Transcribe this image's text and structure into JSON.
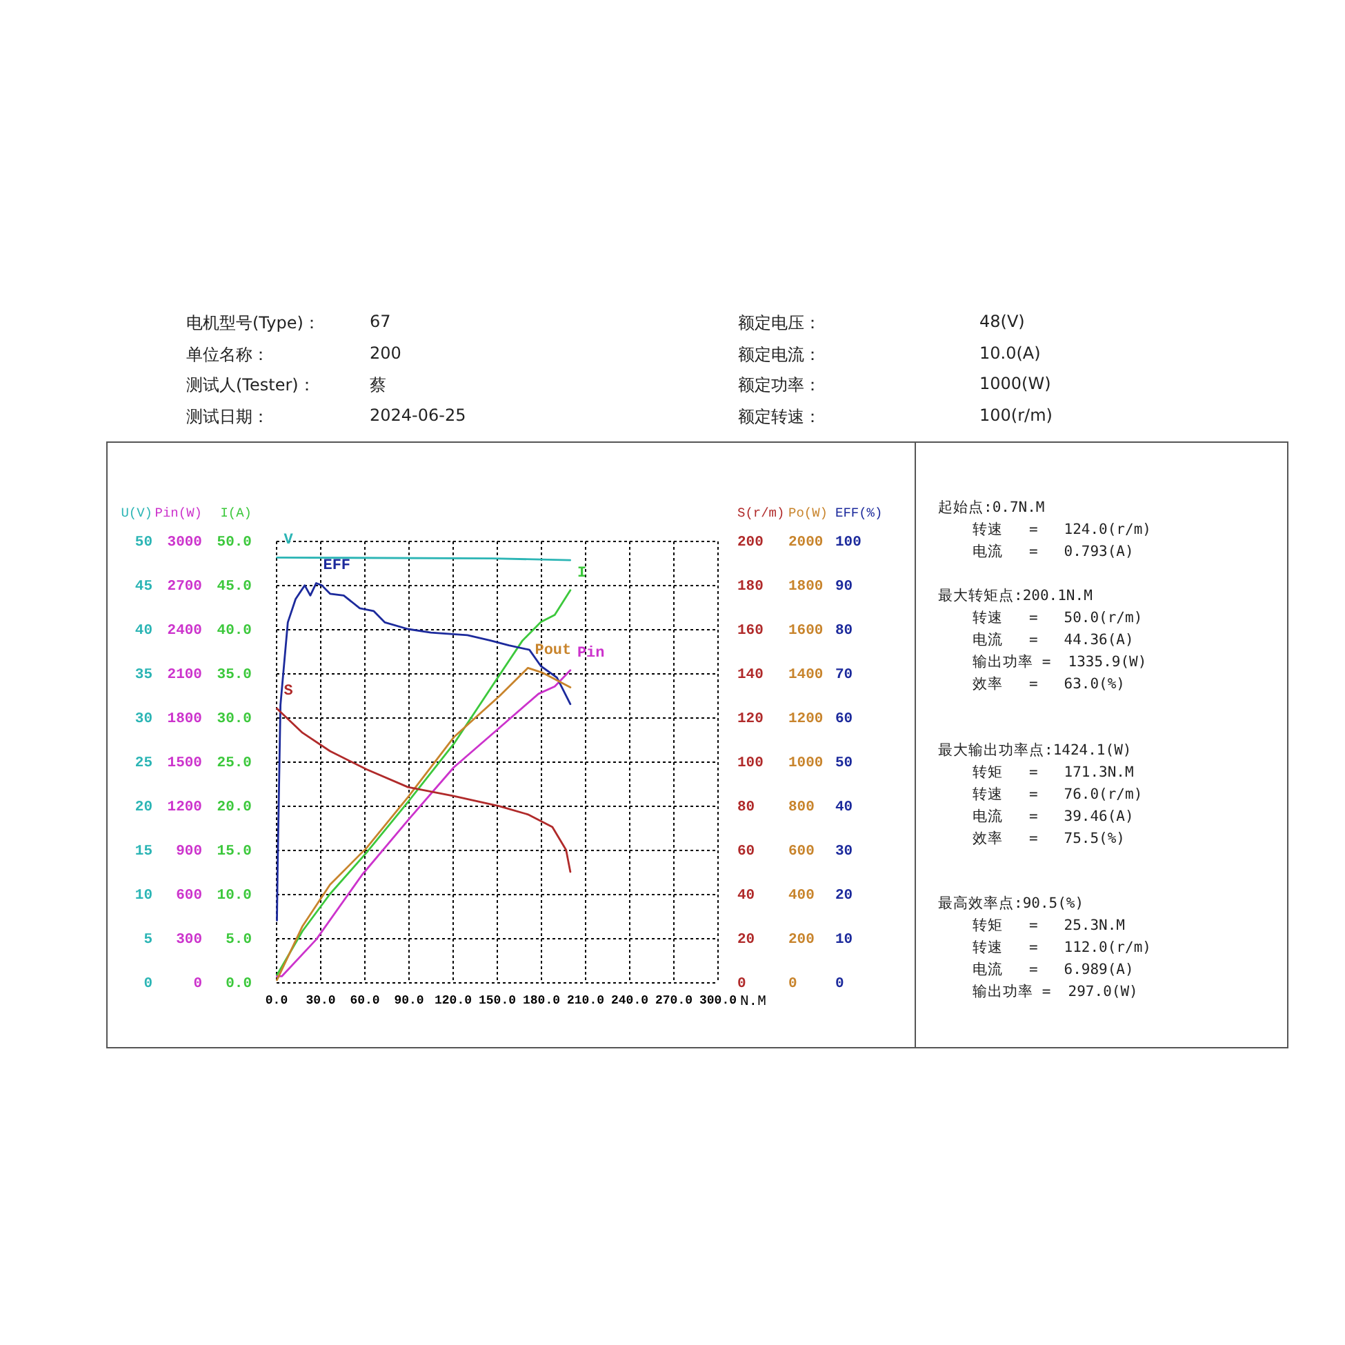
{
  "chart_data": [
    {
      "type": "line",
      "xlabel": "N.M",
      "ylabel": "I(A)",
      "y2label": "Pin(W)",
      "y3label": "U(V)",
      "xlim": [
        0,
        300
      ],
      "xticks": [
        {
          "value": 0,
          "label": "0.0"
        },
        {
          "value": 30,
          "label": "30.0"
        },
        {
          "value": 60,
          "label": "60.0"
        },
        {
          "value": 90,
          "label": "90.0"
        },
        {
          "value": 120,
          "label": "120.0"
        },
        {
          "value": 150,
          "label": "150.0"
        },
        {
          "value": 180,
          "label": "180.0"
        },
        {
          "value": 210,
          "label": "210.0"
        },
        {
          "value": 240,
          "label": "240.0"
        },
        {
          "value": 270,
          "label": "270.0"
        },
        {
          "value": 300,
          "label": "300.0"
        }
      ],
      "ylim": [
        0,
        50
      ],
      "yticks": [
        {
          "value": 0,
          "label": "0.0"
        },
        {
          "value": 5,
          "label": "5.0"
        },
        {
          "value": 10,
          "label": "10.0"
        },
        {
          "value": 15,
          "label": "15.0"
        },
        {
          "value": 20,
          "label": "20.0"
        },
        {
          "value": 25,
          "label": "25.0"
        },
        {
          "value": 30,
          "label": "30.0"
        },
        {
          "value": 35,
          "label": "35.0"
        },
        {
          "value": 40,
          "label": "40.0"
        },
        {
          "value": 45,
          "label": "45.0"
        },
        {
          "value": 50,
          "label": "50.0"
        }
      ],
      "y2lim": [
        0,
        3000
      ],
      "y2ticks": [
        0,
        300,
        600,
        900,
        1200,
        1500,
        1800,
        2100,
        2400,
        2700,
        3000
      ],
      "y3lim": [
        0,
        50
      ],
      "y3ticks": [
        0,
        5,
        10,
        15,
        20,
        25,
        30,
        35,
        40,
        45,
        50
      ],
      "grid": true,
      "series": [
        {
          "name": "V",
          "color": "#2cb5b5",
          "axis": "y3",
          "x": [
            0.7,
            147,
            200
          ],
          "values": [
            48.1,
            48.0,
            47.8
          ]
        },
        {
          "name": "I",
          "color": "#3cc83c",
          "axis": "y",
          "x": [
            0.7,
            18.1,
            36.8,
            61.7,
            89.7,
            120.9,
            152,
            167.6,
            180.1,
            189.5,
            200.1
          ],
          "values": [
            0.8,
            5.8,
            10.0,
            14.7,
            20.4,
            27.0,
            34.8,
            38.7,
            40.8,
            41.6,
            44.4
          ]
        },
        {
          "name": "Pin",
          "color": "#cc33cc",
          "axis": "y2",
          "x": [
            0.7,
            4,
            27.4,
            58.6,
            89.7,
            120.9,
            152,
            178.5,
            189.5,
            200.1
          ],
          "values": [
            40,
            40,
            290,
            730,
            1100,
            1460,
            1730,
            1960,
            2010,
            2120
          ]
        }
      ],
      "annotations": [
        "电机型号(Type)：",
        "67",
        "额定电压：",
        "48(V)",
        "单位名称：",
        "200",
        "额定电流：",
        "10.0(A)",
        "测试人(Tester)：",
        "蔡",
        "额定功率：",
        "1000(W)",
        "测试日期：",
        "2024-06-25",
        "额定转速：",
        "100(r/m)",
        "起始点:0.7N.M",
        "转速   =   124.0(r/m)",
        "电流   =   0.793(A)",
        "最大转矩点:200.1N.M",
        "转速   =   50.0(r/m)",
        "电流   =   44.36(A)",
        "输出功率 =  1335.9(W)",
        "效率   =   63.0(%)",
        "最大输出功率点:1424.1(W)",
        "转矩   =   171.3N.M",
        "转速   =   76.0(r/m)",
        "电流   =   39.46(A)",
        "效率   =   75.5(%)",
        "最高效率点:90.5(%)",
        "转矩   =   25.3N.M",
        "转速   =   112.0(r/m)",
        "电流   =   6.989(A)",
        "输出功率 =  297.0(W)"
      ]
    },
    {
      "type": "line",
      "tick_labels": "y",
      "ylabel": "S(r/m)",
      "y2label": "Po(W)",
      "y3label": "EFF(%)",
      "xlim": [
        0,
        300
      ],
      "ylim": [
        0,
        200
      ],
      "yticks": [
        0,
        20,
        40,
        60,
        80,
        100,
        120,
        140,
        160,
        180,
        200
      ],
      "y2lim": [
        0,
        2000
      ],
      "y2ticks": [
        0,
        200,
        400,
        600,
        800,
        1000,
        1200,
        1400,
        1600,
        1800,
        2000
      ],
      "y3lim": [
        0,
        100
      ],
      "y3ticks": [
        0,
        10,
        20,
        30,
        40,
        50,
        60,
        70,
        80,
        90,
        100
      ],
      "series": [
        {
          "name": "EFF",
          "color": "#1c2a9c",
          "axis": "y3",
          "x": [
            0.7,
            1.2,
            3.1,
            8.1,
            13.4,
            19.6,
            23.4,
            27.4,
            31.2,
            36.8,
            46.1,
            57,
            66.4,
            74.1,
            89.7,
            105.3,
            130.2,
            145.8,
            158.3,
            172.3,
            180.1,
            191,
            200.1
          ],
          "values": [
            14,
            26.8,
            62.8,
            81.5,
            86.8,
            89.9,
            87.6,
            90.4,
            89.9,
            88.0,
            87.6,
            84.7,
            84.1,
            81.5,
            80.0,
            79.2,
            78.6,
            77.4,
            76.3,
            75.3,
            71.6,
            69.0,
            63.0
          ]
        },
        {
          "name": "Pout",
          "color": "#c8842c",
          "axis": "y2",
          "x": [
            0.7,
            18.1,
            36.8,
            61.7,
            89.7,
            120.9,
            152,
            171.3,
            181.6,
            200.1
          ],
          "values": [
            10,
            254,
            442,
            609,
            838,
            1110,
            1297,
            1424,
            1401,
            1336
          ]
        },
        {
          "name": "S",
          "color": "#b02a2a",
          "axis": "y",
          "x": [
            0.7,
            18.1,
            36.8,
            61.7,
            89.7,
            120.9,
            152,
            171.3,
            187.9,
            197.2,
            200.1
          ],
          "values": [
            124,
            113,
            104.7,
            96.4,
            88.4,
            84.3,
            79.7,
            76,
            70.3,
            59.9,
            50
          ]
        }
      ]
    }
  ]
}
